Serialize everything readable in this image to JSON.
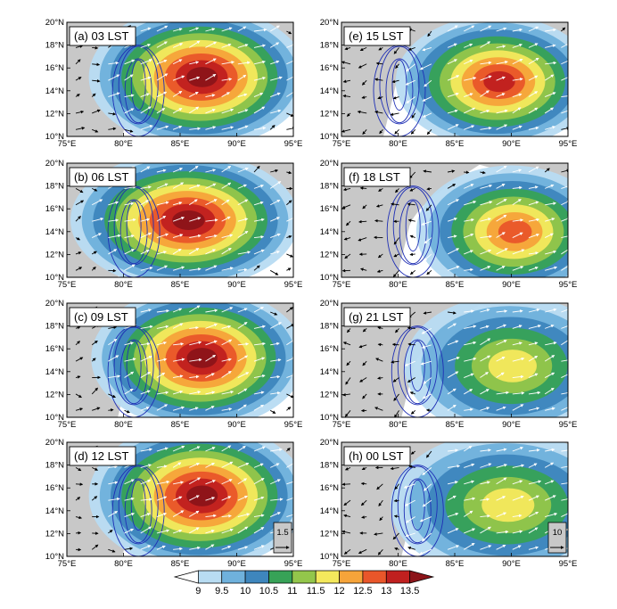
{
  "figure": {
    "panels": [
      {
        "id": "a",
        "label": "(a) 03 LST",
        "ref_vector": ""
      },
      {
        "id": "e",
        "label": "(e) 15 LST",
        "ref_vector": ""
      },
      {
        "id": "b",
        "label": "(b) 06 LST",
        "ref_vector": ""
      },
      {
        "id": "f",
        "label": "(f) 18 LST",
        "ref_vector": ""
      },
      {
        "id": "c",
        "label": "(c) 09 LST",
        "ref_vector": ""
      },
      {
        "id": "g",
        "label": "(g) 21 LST",
        "ref_vector": ""
      },
      {
        "id": "d",
        "label": "(d) 12 LST",
        "ref_vector": "1.5"
      },
      {
        "id": "h",
        "label": "(h) 00 LST",
        "ref_vector": "10"
      }
    ],
    "x_ticks": [
      "75°E",
      "80°E",
      "85°E",
      "90°E",
      "95°E"
    ],
    "y_ticks": [
      "10°N",
      "12°N",
      "14°N",
      "16°N",
      "18°N",
      "20°N"
    ],
    "lon_range": [
      75,
      95
    ],
    "lat_range": [
      10,
      20
    ],
    "colorbar": {
      "levels": [
        "9",
        "9.5",
        "10",
        "10.5",
        "11",
        "11.5",
        "12",
        "12.5",
        "13",
        "13.5"
      ],
      "colors": [
        "#ffffff",
        "#b8dcf2",
        "#6fb1dc",
        "#3e86bd",
        "#37a257",
        "#93c64b",
        "#f4e85c",
        "#f6a43a",
        "#e9562a",
        "#c0201f",
        "#8c1419"
      ]
    },
    "land_color": "#c8c8c8",
    "contour_color": "#1f2fb5"
  }
}
